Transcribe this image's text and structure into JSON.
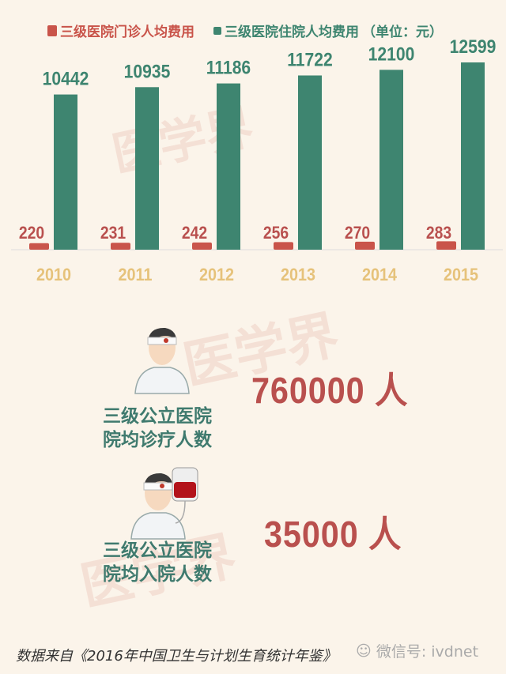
{
  "chart_data": {
    "type": "bar",
    "categories": [
      "2010",
      "2011",
      "2012",
      "2013",
      "2014",
      "2015"
    ],
    "series": [
      {
        "name": "三级医院门诊人均费用",
        "values": [
          220,
          231,
          242,
          256,
          270,
          283
        ],
        "color": "#c9544a"
      },
      {
        "name": "三级医院住院人均费用",
        "values": [
          10442,
          10935,
          11186,
          11722,
          12100,
          12599
        ],
        "color": "#3e8570"
      }
    ],
    "unit_label": "（单位：元）",
    "ylim": [
      0,
      13000
    ],
    "grid": false,
    "legend": "top",
    "year_label_color": "#e6c27a"
  },
  "watermark": "医学界",
  "stats": [
    {
      "value": "760000 人",
      "caption_line1": "三级公立医院",
      "caption_line2": "院均诊疗人数"
    },
    {
      "value": "35000 人",
      "caption_line1": "三级公立医院",
      "caption_line2": "院均入院人数"
    }
  ],
  "source": "数据来自《2016年中国卫生与计划生育统计年鉴》",
  "wechat": "微信号: ivdnet"
}
